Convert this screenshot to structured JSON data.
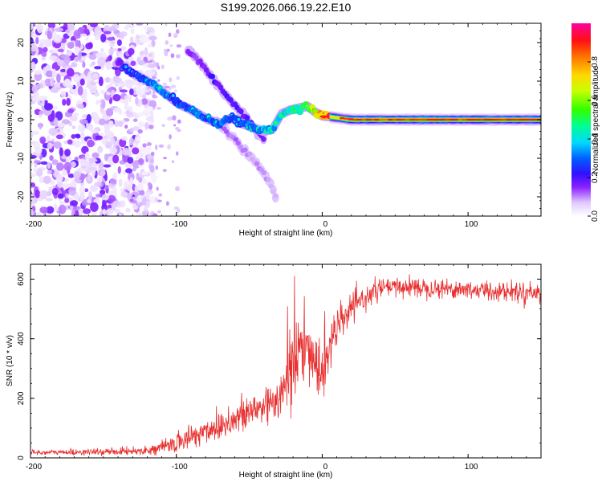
{
  "figure_title": "S199.2026.066.19.22.E10",
  "chart_data": [
    {
      "type": "heatmap",
      "title": "S199.2026.066.19.22.E10",
      "xlabel": "Height of straight line (km)",
      "ylabel": "Frequency (Hz)",
      "xlim": [
        -200,
        150
      ],
      "ylim": [
        -25,
        25
      ],
      "xticks": [
        -200,
        -100,
        0,
        100
      ],
      "yticks": [
        -20,
        -10,
        0,
        10,
        20
      ],
      "colorbar": {
        "label": "Normalized spectral amplitude",
        "range": [
          0,
          1
        ],
        "ticks": [
          0.0,
          0.2,
          0.4,
          0.6,
          0.8
        ]
      },
      "features": {
        "noise_region_x": [
          -200,
          -115
        ],
        "main_track": {
          "x": [
            -140,
            -130,
            -120,
            -112,
            -105,
            -98,
            -92,
            -85,
            -78,
            -70,
            -62,
            -55,
            -48,
            -40,
            -34,
            -28,
            -22,
            -16,
            -10,
            -5,
            0,
            10,
            20,
            40,
            60,
            80,
            100,
            120,
            150
          ],
          "y": [
            15,
            12,
            10,
            8,
            6,
            4,
            3,
            1.5,
            0,
            -1,
            0.5,
            -1,
            -2,
            -3,
            -2.5,
            1.5,
            2.5,
            3,
            3.5,
            2,
            1,
            0.5,
            0,
            0,
            0,
            0,
            0,
            0,
            0
          ],
          "amplitude": [
            0.2,
            0.25,
            0.3,
            0.35,
            0.3,
            0.3,
            0.3,
            0.3,
            0.3,
            0.3,
            0.3,
            0.3,
            0.35,
            0.4,
            0.4,
            0.45,
            0.45,
            0.5,
            0.55,
            0.65,
            0.85,
            0.95,
            0.95,
            0.95,
            0.95,
            0.95,
            0.95,
            0.95,
            0.95
          ]
        },
        "secondary_track": {
          "x": [
            -92,
            -85,
            -78,
            -72,
            -65,
            -58,
            -52,
            -46,
            -40
          ],
          "y": [
            18,
            15.5,
            12,
            9,
            6,
            3,
            0.5,
            -2.5,
            -5
          ],
          "amplitude": [
            0.15,
            0.15,
            0.2,
            0.2,
            0.2,
            0.2,
            0.2,
            0.2,
            0.15
          ]
        },
        "tertiary_track": {
          "x": [
            -72,
            -66,
            -60,
            -54,
            -48,
            -42,
            -36,
            -32
          ],
          "y": [
            0,
            -3,
            -5,
            -8,
            -10,
            -13,
            -16,
            -20
          ],
          "amplitude": [
            0.12,
            0.12,
            0.12,
            0.1,
            0.1,
            0.1,
            0.1,
            0.08
          ]
        }
      }
    },
    {
      "type": "line",
      "xlabel": "Height of straight line (km)",
      "ylabel": "SNR (10 * v/v)",
      "xlim": [
        -200,
        150
      ],
      "ylim": [
        0,
        650
      ],
      "xticks": [
        -200,
        -100,
        0,
        100
      ],
      "yticks": [
        0,
        200,
        400,
        600
      ],
      "color": "#e83030",
      "series": [
        {
          "name": "SNR",
          "envelope_x": [
            -200,
            -150,
            -120,
            -110,
            -100,
            -90,
            -80,
            -70,
            -60,
            -50,
            -40,
            -30,
            -25,
            -20,
            -15,
            -10,
            -5,
            0,
            5,
            10,
            15,
            20,
            30,
            40,
            60,
            80,
            100,
            120,
            150
          ],
          "envelope_mean": [
            18,
            20,
            25,
            35,
            50,
            70,
            90,
            110,
            130,
            150,
            175,
            210,
            250,
            320,
            360,
            380,
            330,
            300,
            380,
            430,
            470,
            500,
            540,
            570,
            575,
            570,
            565,
            560,
            555
          ],
          "envelope_spread": [
            8,
            10,
            12,
            18,
            30,
            40,
            45,
            50,
            55,
            60,
            70,
            80,
            100,
            120,
            120,
            100,
            90,
            120,
            80,
            60,
            50,
            40,
            35,
            30,
            30,
            30,
            30,
            30,
            30
          ]
        }
      ]
    }
  ]
}
